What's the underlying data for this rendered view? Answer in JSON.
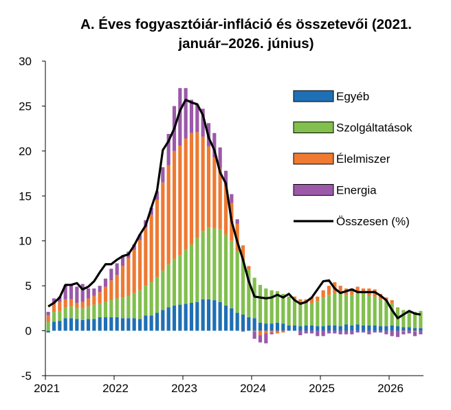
{
  "chart_data": {
    "type": "bar",
    "title_line1": "A. Éves fogyasztóiár-infláció és összetevői (2021.",
    "title_line2": "január–2026. június)",
    "ylim": [
      -5,
      30
    ],
    "yticks": [
      "30",
      "25",
      "20",
      "15",
      "10",
      "5",
      "0",
      "-5"
    ],
    "xticks": [
      "2021",
      "2022",
      "2023",
      "2024",
      "2025",
      "2026"
    ],
    "grid": false,
    "legend_position": "right",
    "colors": {
      "Egyéb": "#1f6fb4",
      "Szolgáltatások": "#82bf4e",
      "Élelmiszer": "#ee7a33",
      "Energia": "#9b59a8",
      "Összesen (%)": "#000000"
    },
    "legend": [
      "Egyéb",
      "Szolgáltatások",
      "Élelmiszer",
      "Energia",
      "Összesen (%)"
    ],
    "categories": [
      "2021-01",
      "2021-02",
      "2021-03",
      "2021-04",
      "2021-05",
      "2021-06",
      "2021-07",
      "2021-08",
      "2021-09",
      "2021-10",
      "2021-11",
      "2021-12",
      "2022-01",
      "2022-02",
      "2022-03",
      "2022-04",
      "2022-05",
      "2022-06",
      "2022-07",
      "2022-08",
      "2022-09",
      "2022-10",
      "2022-11",
      "2022-12",
      "2023-01",
      "2023-02",
      "2023-03",
      "2023-04",
      "2023-05",
      "2023-06",
      "2023-07",
      "2023-08",
      "2023-09",
      "2023-10",
      "2023-11",
      "2023-12",
      "2024-01",
      "2024-02",
      "2024-03",
      "2024-04",
      "2024-05",
      "2024-06",
      "2024-07",
      "2024-08",
      "2024-09",
      "2024-10",
      "2024-11",
      "2024-12",
      "2025-01",
      "2025-02",
      "2025-03",
      "2025-04",
      "2025-05",
      "2025-06",
      "2025-07",
      "2025-08",
      "2025-09",
      "2025-10",
      "2025-11",
      "2025-12",
      "2026-01",
      "2026-02",
      "2026-03",
      "2026-04",
      "2026-05",
      "2026-06"
    ],
    "series": [
      {
        "name": "Egyéb",
        "values": [
          -0.2,
          1.0,
          1.1,
          1.4,
          1.4,
          1.3,
          1.2,
          1.3,
          1.3,
          1.5,
          1.5,
          1.5,
          1.5,
          1.4,
          1.4,
          1.4,
          1.3,
          1.7,
          1.7,
          2.0,
          2.3,
          2.6,
          2.8,
          2.9,
          3.0,
          3.1,
          3.2,
          3.5,
          3.5,
          3.4,
          3.2,
          2.8,
          2.5,
          2.0,
          1.8,
          1.5,
          1.4,
          0.9,
          0.8,
          0.8,
          0.9,
          0.8,
          0.6,
          0.6,
          0.5,
          0.6,
          0.6,
          0.5,
          0.5,
          0.6,
          0.6,
          0.5,
          0.7,
          0.6,
          0.7,
          0.6,
          0.6,
          0.6,
          0.5,
          0.5,
          0.6,
          0.5,
          0.4,
          0.4,
          0.3,
          0.3
        ]
      },
      {
        "name": "Szolgáltatások",
        "values": [
          1.0,
          1.1,
          1.1,
          1.2,
          1.3,
          1.2,
          1.3,
          1.4,
          1.6,
          1.5,
          1.7,
          1.9,
          2.1,
          2.3,
          2.5,
          2.8,
          3.2,
          3.3,
          3.7,
          4.0,
          4.4,
          4.8,
          5.2,
          5.5,
          6.0,
          6.5,
          7.1,
          7.6,
          8.0,
          8.0,
          8.1,
          7.9,
          7.5,
          6.9,
          6.1,
          5.3,
          4.5,
          4.2,
          3.9,
          3.7,
          3.5,
          3.3,
          3.2,
          3.0,
          2.6,
          2.4,
          2.5,
          2.8,
          3.2,
          3.4,
          3.6,
          3.6,
          3.3,
          3.4,
          3.5,
          3.5,
          3.3,
          3.2,
          3.0,
          2.8,
          2.5,
          2.0,
          1.9,
          1.8,
          1.8,
          1.9
        ]
      },
      {
        "name": "Élelmiszer",
        "values": [
          0.7,
          0.9,
          1.0,
          0.9,
          0.8,
          0.6,
          0.7,
          0.9,
          1.0,
          1.3,
          1.7,
          2.2,
          2.6,
          3.5,
          4.2,
          4.8,
          5.6,
          6.5,
          7.5,
          8.6,
          9.8,
          11.0,
          12.0,
          12.2,
          12.4,
          12.4,
          11.8,
          10.5,
          9.0,
          7.9,
          6.8,
          5.5,
          4.2,
          3.0,
          1.6,
          0.4,
          -0.1,
          -0.5,
          -0.3,
          -0.2,
          -0.3,
          -0.2,
          0.0,
          0.2,
          0.4,
          0.5,
          0.6,
          0.5,
          0.8,
          1.0,
          1.2,
          0.9,
          0.7,
          0.7,
          0.7,
          0.6,
          0.8,
          0.8,
          0.6,
          0.4,
          0.3,
          0.1,
          -0.1,
          0.0,
          -0.1,
          0.0
        ]
      },
      {
        "name": "Energia",
        "values": [
          0.4,
          0.6,
          0.6,
          1.6,
          1.7,
          1.8,
          2.0,
          1.1,
          0.8,
          0.7,
          0.9,
          1.3,
          1.3,
          1.2,
          0.7,
          0.6,
          0.6,
          0.8,
          0.8,
          0.9,
          1.7,
          3.5,
          5.0,
          6.4,
          5.6,
          3.7,
          3.1,
          3.1,
          2.6,
          2.7,
          2.3,
          1.6,
          1.0,
          0.5,
          -0.1,
          0.0,
          -0.8,
          -0.8,
          -1.1,
          -0.2,
          0.0,
          0.0,
          0.0,
          0.0,
          -0.5,
          -0.3,
          -0.3,
          -0.6,
          -0.6,
          -0.3,
          -0.3,
          -0.4,
          -0.4,
          -0.4,
          -0.2,
          -0.2,
          -0.4,
          -0.2,
          -0.2,
          -0.4,
          -0.6,
          -0.7,
          -0.3,
          -0.3,
          -0.5,
          -0.4
        ]
      },
      {
        "name": "Összesen (%)",
        "values": [
          2.7,
          3.1,
          3.7,
          5.1,
          5.1,
          5.3,
          4.6,
          4.9,
          5.5,
          6.5,
          7.4,
          7.4,
          7.9,
          8.3,
          8.5,
          9.5,
          10.7,
          11.7,
          13.7,
          15.6,
          20.1,
          21.1,
          22.5,
          24.5,
          25.7,
          25.4,
          25.2,
          24.0,
          21.5,
          20.1,
          17.6,
          16.4,
          12.2,
          9.9,
          7.9,
          5.5,
          3.8,
          3.7,
          3.6,
          3.7,
          4.0,
          3.7,
          4.1,
          3.4,
          3.0,
          3.2,
          3.7,
          4.6,
          5.5,
          5.6,
          4.7,
          4.2,
          4.4,
          4.6,
          4.3,
          4.3,
          4.3,
          4.3,
          3.9,
          3.4,
          2.3,
          1.4,
          1.8,
          2.2,
          1.9,
          1.8
        ]
      }
    ]
  }
}
